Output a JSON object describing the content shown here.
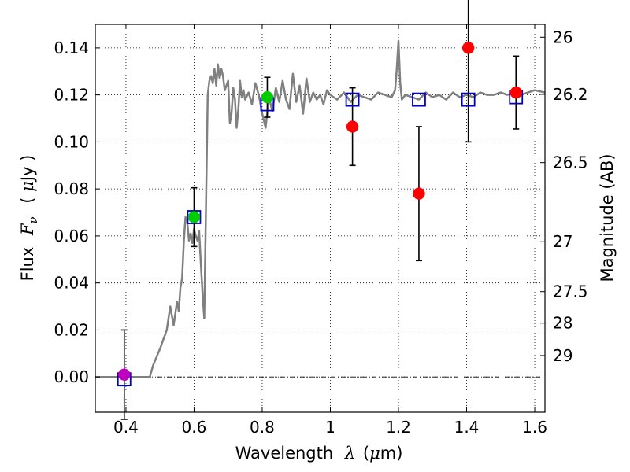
{
  "chart_data": {
    "type": "scatter",
    "title": "",
    "xlabel_text": "Wavelength",
    "xlabel_symbol": "λ",
    "xlabel_unit_open": "(",
    "xlabel_unit_mu": "μ",
    "xlabel_unit_rest": "m)",
    "ylabel_text": "Flux",
    "ylabel_symbol": "F",
    "ylabel_sub": "ν",
    "ylabel_unit_open": "(",
    "ylabel_unit_mu": "μ",
    "ylabel_unit_rest": "Jy )",
    "y2label": "Magnitude (AB)",
    "xlim": [
      0.31,
      1.63
    ],
    "ylim": [
      -0.015,
      0.15
    ],
    "grid": true,
    "x_ticks": [
      0.4,
      0.6,
      0.8,
      1.0,
      1.2,
      1.4,
      1.6
    ],
    "x_tick_labels": [
      "0.4",
      "0.6",
      "0.8",
      "1",
      "1.2",
      "1.4",
      "1.6"
    ],
    "y_ticks": [
      0.0,
      0.02,
      0.04,
      0.06,
      0.08,
      0.1,
      0.12,
      0.14
    ],
    "y_tick_labels": [
      "0.00",
      "0.02",
      "0.04",
      "0.06",
      "0.08",
      "0.10",
      "0.12",
      "0.14"
    ],
    "y2_ticks": [
      {
        "mag": 26,
        "label": "26"
      },
      {
        "mag": 26.2,
        "label": "26.2"
      },
      {
        "mag": 26.5,
        "label": "26.5"
      },
      {
        "mag": 27,
        "label": "27"
      },
      {
        "mag": 27.5,
        "label": "27.5"
      },
      {
        "mag": 28,
        "label": "28"
      },
      {
        "mag": 29,
        "label": "29"
      }
    ],
    "zero_line": 0.0,
    "colors": {
      "template": "#808080",
      "model_box": "#0000cc",
      "green": "#00cc00",
      "red": "#ff0000",
      "magenta": "#bf00bf",
      "errorbar": "#000000",
      "grid": "#000000"
    },
    "template_spectrum": {
      "x": [
        0.31,
        0.47,
        0.48,
        0.5,
        0.52,
        0.53,
        0.54,
        0.55,
        0.555,
        0.56,
        0.565,
        0.57,
        0.575,
        0.58,
        0.585,
        0.59,
        0.595,
        0.6,
        0.605,
        0.61,
        0.615,
        0.62,
        0.625,
        0.63,
        0.64,
        0.645,
        0.65,
        0.655,
        0.66,
        0.665,
        0.67,
        0.675,
        0.68,
        0.685,
        0.69,
        0.7,
        0.705,
        0.71,
        0.715,
        0.72,
        0.725,
        0.73,
        0.735,
        0.74,
        0.745,
        0.75,
        0.76,
        0.77,
        0.78,
        0.79,
        0.8,
        0.81,
        0.82,
        0.83,
        0.84,
        0.85,
        0.86,
        0.87,
        0.88,
        0.89,
        0.9,
        0.91,
        0.92,
        0.93,
        0.94,
        0.95,
        0.96,
        0.97,
        0.98,
        0.99,
        1.0,
        1.02,
        1.04,
        1.06,
        1.08,
        1.1,
        1.12,
        1.14,
        1.16,
        1.18,
        1.19,
        1.195,
        1.2,
        1.205,
        1.21,
        1.22,
        1.24,
        1.26,
        1.28,
        1.3,
        1.32,
        1.34,
        1.36,
        1.38,
        1.4,
        1.42,
        1.44,
        1.46,
        1.48,
        1.5,
        1.52,
        1.54,
        1.56,
        1.58,
        1.6,
        1.63
      ],
      "y": [
        0.0,
        0.0,
        0.005,
        0.012,
        0.02,
        0.03,
        0.022,
        0.032,
        0.028,
        0.038,
        0.042,
        0.058,
        0.068,
        0.066,
        0.058,
        0.061,
        0.057,
        0.063,
        0.06,
        0.058,
        0.062,
        0.048,
        0.035,
        0.025,
        0.12,
        0.126,
        0.128,
        0.125,
        0.131,
        0.124,
        0.133,
        0.127,
        0.131,
        0.128,
        0.122,
        0.126,
        0.108,
        0.112,
        0.123,
        0.118,
        0.106,
        0.114,
        0.126,
        0.119,
        0.122,
        0.118,
        0.121,
        0.116,
        0.125,
        0.12,
        0.112,
        0.106,
        0.119,
        0.113,
        0.123,
        0.117,
        0.126,
        0.118,
        0.114,
        0.129,
        0.117,
        0.124,
        0.112,
        0.127,
        0.117,
        0.121,
        0.118,
        0.12,
        0.116,
        0.122,
        0.12,
        0.118,
        0.121,
        0.117,
        0.12,
        0.119,
        0.118,
        0.121,
        0.12,
        0.119,
        0.122,
        0.131,
        0.143,
        0.125,
        0.118,
        0.12,
        0.119,
        0.118,
        0.121,
        0.119,
        0.12,
        0.118,
        0.121,
        0.119,
        0.12,
        0.119,
        0.121,
        0.12,
        0.12,
        0.121,
        0.12,
        0.121,
        0.12,
        0.121,
        0.122,
        0.121
      ]
    },
    "model_points": [
      {
        "x": 0.395,
        "y": -0.001
      },
      {
        "x": 0.6,
        "y": 0.068
      },
      {
        "x": 0.815,
        "y": 0.116
      },
      {
        "x": 1.065,
        "y": 0.118
      },
      {
        "x": 1.26,
        "y": 0.118
      },
      {
        "x": 1.405,
        "y": 0.118
      },
      {
        "x": 1.545,
        "y": 0.119
      }
    ],
    "observed_points": [
      {
        "x": 0.395,
        "y": 0.001,
        "yerr": 0.019,
        "color": "magenta"
      },
      {
        "x": 0.6,
        "y": 0.068,
        "yerr": 0.0125,
        "color": "green"
      },
      {
        "x": 0.815,
        "y": 0.119,
        "yerr": 0.0085,
        "color": "green"
      },
      {
        "x": 1.065,
        "y": 0.1065,
        "yerr": 0.0165,
        "color": "red"
      },
      {
        "x": 1.26,
        "y": 0.078,
        "yerr": 0.0285,
        "color": "red"
      },
      {
        "x": 1.405,
        "y": 0.14,
        "yerr": 0.04,
        "color": "red"
      },
      {
        "x": 1.545,
        "y": 0.121,
        "yerr": 0.0155,
        "color": "red"
      }
    ]
  }
}
